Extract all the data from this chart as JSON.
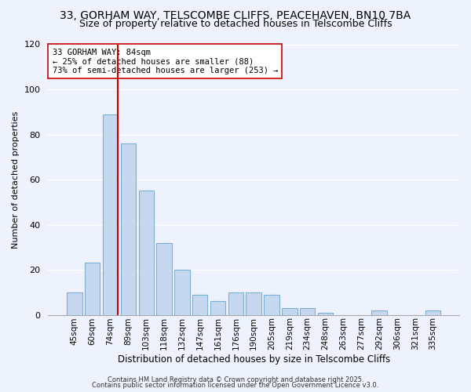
{
  "title_line1": "33, GORHAM WAY, TELSCOMBE CLIFFS, PEACEHAVEN, BN10 7BA",
  "title_line2": "Size of property relative to detached houses in Telscombe Cliffs",
  "xlabel": "Distribution of detached houses by size in Telscombe Cliffs",
  "ylabel": "Number of detached properties",
  "bar_labels": [
    "45sqm",
    "60sqm",
    "74sqm",
    "89sqm",
    "103sqm",
    "118sqm",
    "132sqm",
    "147sqm",
    "161sqm",
    "176sqm",
    "190sqm",
    "205sqm",
    "219sqm",
    "234sqm",
    "248sqm",
    "263sqm",
    "277sqm",
    "292sqm",
    "306sqm",
    "321sqm",
    "335sqm"
  ],
  "bar_values": [
    10,
    23,
    89,
    76,
    55,
    32,
    20,
    9,
    6,
    10,
    10,
    9,
    3,
    3,
    1,
    0,
    0,
    2,
    0,
    0,
    2
  ],
  "bar_color": "#c5d8f0",
  "bar_edge_color": "#7bafd4",
  "reference_line_color": "#cc0000",
  "annotation_title": "33 GORHAM WAY: 84sqm",
  "annotation_line1": "← 25% of detached houses are smaller (88)",
  "annotation_line2": "73% of semi-detached houses are larger (253) →",
  "annotation_box_color": "#ffffff",
  "annotation_box_edge": "#cc0000",
  "ylim": [
    0,
    120
  ],
  "yticks": [
    0,
    20,
    40,
    60,
    80,
    100,
    120
  ],
  "footer_line1": "Contains HM Land Registry data © Crown copyright and database right 2025.",
  "footer_line2": "Contains public sector information licensed under the Open Government Licence v3.0.",
  "bg_color": "#eef2fc",
  "grid_color": "#ffffff",
  "title_fontsize": 10,
  "subtitle_fontsize": 9
}
